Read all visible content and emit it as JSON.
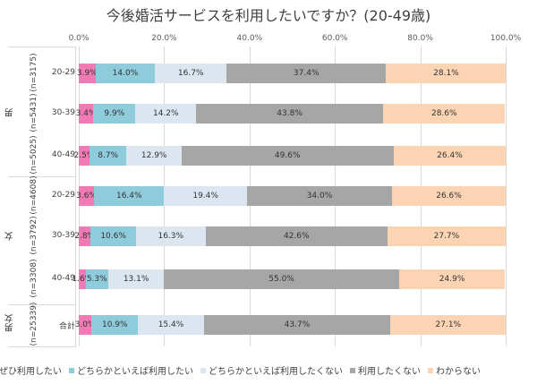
{
  "chart_data": {
    "type": "bar",
    "stacked": true,
    "orientation": "horizontal",
    "title": "今後婚活サービスを利用したいですか？(20-49歳)",
    "xlim": [
      0,
      100
    ],
    "xticks": [
      "0.0%",
      "20.0%",
      "40.0%",
      "60.0%",
      "80.0%",
      "100.0%"
    ],
    "groups": [
      {
        "label": "男",
        "rows": [
          0,
          1,
          2
        ]
      },
      {
        "label": "女",
        "rows": [
          3,
          4,
          5
        ]
      },
      {
        "label": "男女",
        "rows": [
          6
        ]
      }
    ],
    "categories": [
      {
        "age": "20-29",
        "n": "(n=3175)"
      },
      {
        "age": "30-39",
        "n": "(n=5431)"
      },
      {
        "age": "40-49",
        "n": "(n=5025)"
      },
      {
        "age": "20-29",
        "n": "(n=4608)"
      },
      {
        "age": "30-39",
        "n": "(n=3792)"
      },
      {
        "age": "40-49",
        "n": "(n=3308)"
      },
      {
        "age": "合計",
        "n": "(n=25339)"
      }
    ],
    "series": [
      {
        "name": "ぜひ利用したい",
        "color": "#f07ab4",
        "values": [
          3.9,
          3.4,
          2.5,
          3.6,
          2.8,
          1.6,
          3.0
        ]
      },
      {
        "name": "どちらかといえば利用したい",
        "color": "#8ecbdb",
        "values": [
          14.0,
          9.9,
          8.7,
          16.4,
          10.6,
          5.3,
          10.9
        ]
      },
      {
        "name": "どちらかといえば利用したくない",
        "color": "#dce6f1",
        "values": [
          16.7,
          14.2,
          12.9,
          19.4,
          16.3,
          13.1,
          15.4
        ]
      },
      {
        "name": "利用したくない",
        "color": "#a6a6a6",
        "values": [
          37.4,
          43.8,
          49.6,
          34.0,
          42.6,
          55.0,
          43.7
        ]
      },
      {
        "name": "わからない",
        "color": "#fbd4b4",
        "values": [
          28.1,
          28.6,
          26.4,
          26.6,
          27.7,
          24.9,
          27.1
        ]
      }
    ],
    "legend": "bottom",
    "grid": true
  }
}
